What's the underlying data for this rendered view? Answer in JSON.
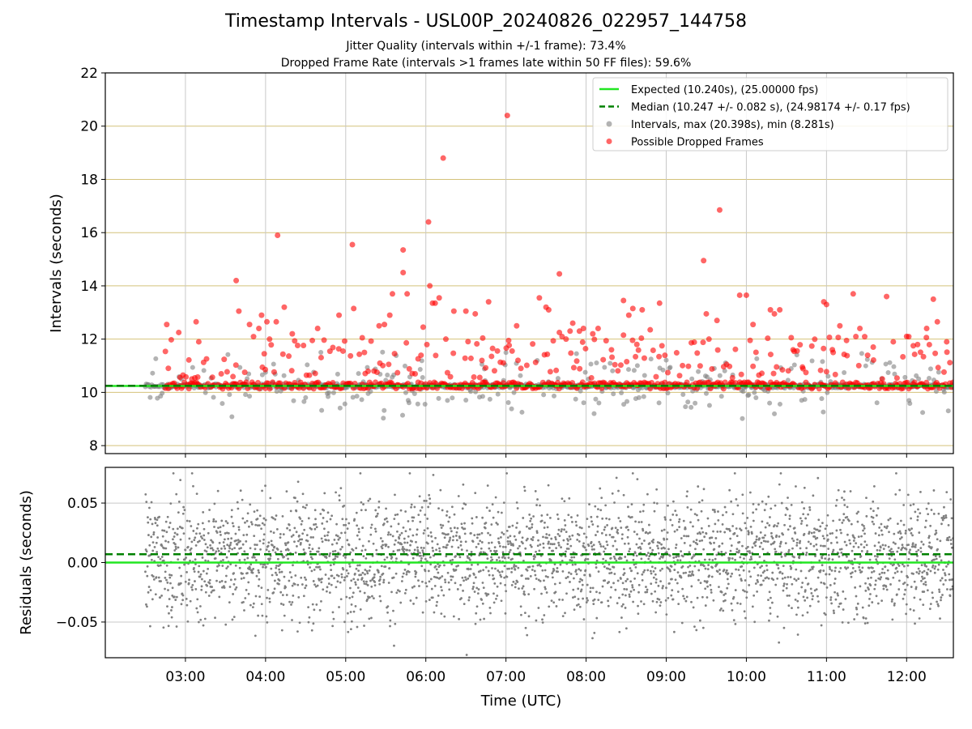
{
  "chart_data": [
    {
      "type": "scatter",
      "title": "Timestamp Intervals - USL00P_20240826_022957_144758",
      "subtitle_lines": [
        "Jitter Quality (intervals within +/-1 frame): 73.4%",
        "Dropped Frame Rate (intervals >1 frames late within 50 FF files): 59.6%"
      ],
      "xlabel": "",
      "ylabel": "Intervals (seconds)",
      "xlim": [
        "02:00",
        "12:35"
      ],
      "ylim": [
        7.7,
        22
      ],
      "y_ticks": [
        8,
        10,
        12,
        14,
        16,
        18,
        20,
        22
      ],
      "x_ticks": [
        "03:00",
        "04:00",
        "05:00",
        "06:00",
        "07:00",
        "08:00",
        "09:00",
        "10:00",
        "11:00",
        "12:00"
      ],
      "grid": true,
      "legend_position": "top-right",
      "series": [
        {
          "name": "Expected (10.240s), (25.00000 fps)",
          "kind": "hline",
          "y": 10.24,
          "color": "#22e622",
          "style": "solid"
        },
        {
          "name": "Median (10.247 +/- 0.082 s), (24.98174 +/- 0.17 fps)",
          "kind": "hline",
          "y": 10.247,
          "color": "#008000",
          "style": "dashed"
        },
        {
          "name": "Intervals, max (20.398s), min (8.281s)",
          "kind": "scatter",
          "color": "#808080"
        },
        {
          "name": "Possible Dropped Frames",
          "kind": "scatter",
          "color": "#ff0000",
          "points": [
            [
              "02:46",
              12.55
            ],
            [
              "02:55",
              12.25
            ],
            [
              "03:08",
              12.65
            ],
            [
              "03:10",
              11.9
            ],
            [
              "03:38",
              14.2
            ],
            [
              "03:40",
              13.05
            ],
            [
              "03:48",
              12.55
            ],
            [
              "03:55",
              12.4
            ],
            [
              "03:57",
              12.9
            ],
            [
              "03:59",
              11.45
            ],
            [
              "04:01",
              12.65
            ],
            [
              "04:03",
              12.0
            ],
            [
              "04:08",
              12.65
            ],
            [
              "04:09",
              15.9
            ],
            [
              "04:14",
              13.2
            ],
            [
              "04:20",
              12.2
            ],
            [
              "04:35",
              11.95
            ],
            [
              "04:39",
              12.4
            ],
            [
              "04:55",
              12.9
            ],
            [
              "04:58",
              11.55
            ],
            [
              "05:05",
              15.55
            ],
            [
              "05:06",
              13.15
            ],
            [
              "05:14",
              11.5
            ],
            [
              "05:25",
              12.5
            ],
            [
              "05:29",
              12.55
            ],
            [
              "05:33",
              12.9
            ],
            [
              "05:35",
              13.7
            ],
            [
              "05:43",
              15.35
            ],
            [
              "05:43",
              14.5
            ],
            [
              "05:46",
              13.7
            ],
            [
              "05:58",
              12.45
            ],
            [
              "06:02",
              16.4
            ],
            [
              "06:03",
              14.0
            ],
            [
              "06:05",
              13.35
            ],
            [
              "06:07",
              13.35
            ],
            [
              "06:10",
              13.55
            ],
            [
              "06:13",
              18.8
            ],
            [
              "06:15",
              12.0
            ],
            [
              "06:21",
              13.05
            ],
            [
              "06:30",
              13.05
            ],
            [
              "06:37",
              12.95
            ],
            [
              "06:42",
              11.2
            ],
            [
              "06:47",
              13.4
            ],
            [
              "06:50",
              11.65
            ],
            [
              "07:01",
              20.4
            ],
            [
              "07:02",
              11.95
            ],
            [
              "07:08",
              12.5
            ],
            [
              "07:25",
              13.55
            ],
            [
              "07:30",
              13.2
            ],
            [
              "07:32",
              13.1
            ],
            [
              "07:40",
              14.45
            ],
            [
              "07:40",
              12.25
            ],
            [
              "07:45",
              12.0
            ],
            [
              "07:48",
              12.3
            ],
            [
              "07:50",
              12.6
            ],
            [
              "07:55",
              12.3
            ],
            [
              "07:58",
              12.4
            ],
            [
              "08:05",
              12.2
            ],
            [
              "08:09",
              12.4
            ],
            [
              "08:19",
              11.6
            ],
            [
              "08:28",
              13.45
            ],
            [
              "08:28",
              12.15
            ],
            [
              "08:32",
              12.9
            ],
            [
              "08:35",
              13.15
            ],
            [
              "08:38",
              11.8
            ],
            [
              "08:42",
              13.1
            ],
            [
              "08:48",
              12.35
            ],
            [
              "08:55",
              13.35
            ],
            [
              "09:28",
              14.95
            ],
            [
              "09:30",
              12.95
            ],
            [
              "09:32",
              12.0
            ],
            [
              "09:38",
              12.7
            ],
            [
              "09:40",
              16.85
            ],
            [
              "09:55",
              13.65
            ],
            [
              "10:00",
              13.65
            ],
            [
              "10:05",
              12.55
            ],
            [
              "10:18",
              13.1
            ],
            [
              "10:21",
              12.95
            ],
            [
              "10:25",
              13.1
            ],
            [
              "10:35",
              11.6
            ],
            [
              "10:42",
              10.95
            ],
            [
              "10:58",
              13.4
            ],
            [
              "11:00",
              13.3
            ],
            [
              "11:05",
              11.5
            ],
            [
              "11:10",
              12.5
            ],
            [
              "11:15",
              11.95
            ],
            [
              "11:20",
              13.7
            ],
            [
              "11:25",
              12.4
            ],
            [
              "11:35",
              11.7
            ],
            [
              "11:45",
              13.6
            ],
            [
              "11:50",
              11.9
            ],
            [
              "12:00",
              12.1
            ],
            [
              "12:05",
              11.75
            ],
            [
              "12:15",
              12.4
            ],
            [
              "12:20",
              13.5
            ],
            [
              "12:23",
              12.65
            ],
            [
              "12:30",
              11.9
            ]
          ]
        }
      ],
      "legend": [
        {
          "label": "Expected (10.240s), (25.00000 fps)",
          "kind": "line",
          "color": "#22e622",
          "style": "solid"
        },
        {
          "label": "Median (10.247 +/- 0.082 s), (24.98174 +/- 0.17 fps)",
          "kind": "line",
          "color": "#008000",
          "style": "dashed"
        },
        {
          "label": "Intervals, max (20.398s), min (8.281s)",
          "kind": "marker",
          "color": "#808080"
        },
        {
          "label": "Possible Dropped Frames",
          "kind": "marker",
          "color": "#ff0000"
        }
      ]
    },
    {
      "type": "scatter",
      "xlabel": "Time (UTC)",
      "ylabel": "Residuals (seconds)",
      "xlim": [
        "02:00",
        "12:35"
      ],
      "ylim": [
        -0.08,
        0.08
      ],
      "y_ticks": [
        "0.05",
        "0.00",
        "−0.05"
      ],
      "x_ticks": [
        "03:00",
        "04:00",
        "05:00",
        "06:00",
        "07:00",
        "08:00",
        "09:00",
        "10:00",
        "11:00",
        "12:00"
      ],
      "grid": true,
      "series": [
        {
          "kind": "hline",
          "y": 0.0,
          "color": "#22e622",
          "style": "solid"
        },
        {
          "kind": "hline",
          "y": 0.007,
          "color": "#008000",
          "style": "dashed"
        },
        {
          "kind": "scatter",
          "color": "#808080",
          "x_range": [
            "02:30",
            "12:35"
          ],
          "y_spread": [
            -0.08,
            0.075
          ]
        }
      ]
    }
  ]
}
